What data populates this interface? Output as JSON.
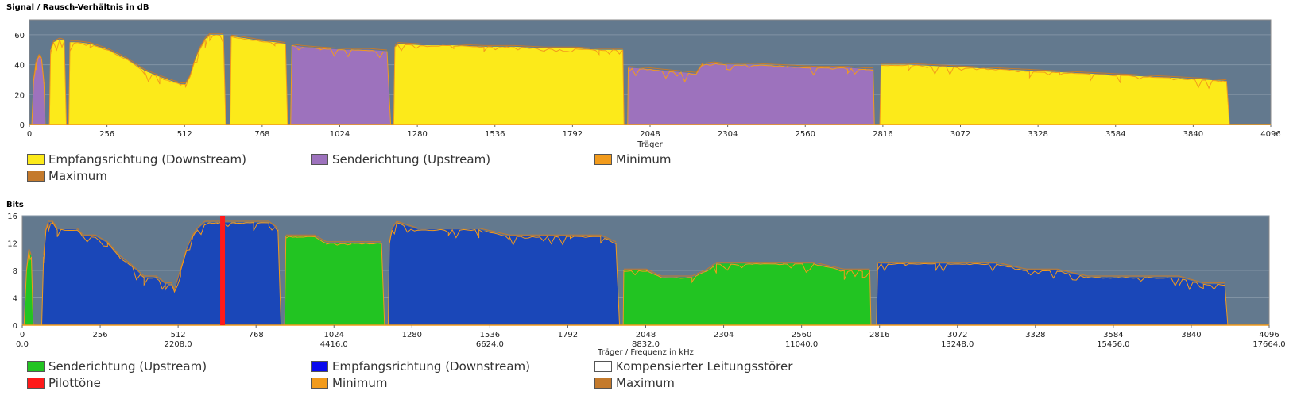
{
  "chart_data": [
    {
      "type": "area",
      "title": "Signal / Rausch-Verhältnis in dB",
      "xlabel": "Träger",
      "xlim": [
        0,
        4096
      ],
      "ylim": [
        0,
        70
      ],
      "y_ticks": [
        0,
        20,
        40,
        60
      ],
      "x_ticks": [
        0,
        256,
        512,
        768,
        1024,
        1280,
        1536,
        1792,
        2048,
        2304,
        2560,
        2816,
        3072,
        3328,
        3584,
        3840,
        4096
      ],
      "grid": true,
      "legend_position": "bottom",
      "colors": {
        "downstream": "#fcea1a",
        "upstream": "#9d72bd",
        "minimum": "#f29b1c",
        "maximum": "#c47a2c",
        "background": "#63798e"
      },
      "legend": [
        {
          "label": "Empfangsrichtung (Downstream)",
          "color": "#fcea1a"
        },
        {
          "label": "Senderichtung (Upstream)",
          "color": "#9d72bd"
        },
        {
          "label": "Minimum",
          "color": "#f29b1c"
        },
        {
          "label": "Maximum",
          "color": "#c47a2c"
        }
      ],
      "series": [
        {
          "name": "Senderichtung (Upstream)",
          "color": "#9d72bd",
          "points": [
            [
              8,
              0
            ],
            [
              14,
              30
            ],
            [
              22,
              42
            ],
            [
              32,
              46
            ],
            [
              40,
              44
            ],
            [
              48,
              28
            ],
            [
              52,
              0
            ]
          ]
        },
        {
          "name": "Empfangsrichtung (Downstream)",
          "color": "#fcea1a",
          "points": [
            [
              66,
              0
            ],
            [
              70,
              50
            ],
            [
              80,
              55
            ],
            [
              100,
              57
            ],
            [
              115,
              56
            ],
            [
              122,
              0
            ]
          ]
        },
        {
          "name": "Empfangsrichtung (Downstream)",
          "color": "#fcea1a",
          "points": [
            [
              130,
              0
            ],
            [
              134,
              55
            ],
            [
              160,
              55
            ],
            [
              200,
              54
            ],
            [
              260,
              50
            ],
            [
              320,
              44
            ],
            [
              380,
              36
            ],
            [
              430,
              32
            ],
            [
              470,
              29
            ],
            [
              500,
              27
            ],
            [
              515,
              27
            ],
            [
              530,
              32
            ],
            [
              545,
              42
            ],
            [
              560,
              50
            ],
            [
              580,
              57
            ],
            [
              595,
              60
            ],
            [
              640,
              60
            ],
            [
              648,
              0
            ]
          ]
        },
        {
          "name": "Empfangsrichtung (Downstream)",
          "color": "#fcea1a",
          "points": [
            [
              662,
              0
            ],
            [
              666,
              59
            ],
            [
              700,
              58
            ],
            [
              760,
              56
            ],
            [
              810,
              55
            ],
            [
              845,
              54
            ],
            [
              852,
              0
            ]
          ]
        },
        {
          "name": "Senderichtung (Upstream)",
          "color": "#9d72bd",
          "points": [
            [
              862,
              0
            ],
            [
              866,
              53
            ],
            [
              900,
              52
            ],
            [
              960,
              51
            ],
            [
              1040,
              50
            ],
            [
              1120,
              50
            ],
            [
              1180,
              49
            ],
            [
              1192,
              0
            ]
          ]
        },
        {
          "name": "Empfangsrichtung (Downstream)",
          "color": "#fcea1a",
          "points": [
            [
              1202,
              0
            ],
            [
              1206,
              52
            ],
            [
              1215,
              54
            ],
            [
              1300,
              53
            ],
            [
              1400,
              53
            ],
            [
              1500,
              52
            ],
            [
              1600,
              52
            ],
            [
              1700,
              51
            ],
            [
              1800,
              51
            ],
            [
              1880,
              50
            ],
            [
              1958,
              50
            ],
            [
              1962,
              0
            ]
          ]
        },
        {
          "name": "Senderichtung (Upstream)",
          "color": "#9d72bd",
          "points": [
            [
              1974,
              0
            ],
            [
              1976,
              38
            ],
            [
              2050,
              37
            ],
            [
              2150,
              35
            ],
            [
              2200,
              34
            ],
            [
              2220,
              40
            ],
            [
              2260,
              41
            ],
            [
              2300,
              40
            ],
            [
              2400,
              40
            ],
            [
              2500,
              39
            ],
            [
              2600,
              38
            ],
            [
              2700,
              38
            ],
            [
              2760,
              37
            ],
            [
              2784,
              37
            ],
            [
              2788,
              0
            ]
          ]
        },
        {
          "name": "Empfangsrichtung (Downstream)",
          "color": "#fcea1a",
          "points": [
            [
              2806,
              0
            ],
            [
              2810,
              40
            ],
            [
              2900,
              40
            ],
            [
              3000,
              39
            ],
            [
              3100,
              38
            ],
            [
              3200,
              37
            ],
            [
              3300,
              36
            ],
            [
              3400,
              35
            ],
            [
              3500,
              34
            ],
            [
              3600,
              33
            ],
            [
              3700,
              32
            ],
            [
              3800,
              31
            ],
            [
              3880,
              30
            ],
            [
              3950,
              29
            ],
            [
              3960,
              0
            ]
          ]
        }
      ]
    },
    {
      "type": "area",
      "title": "Bits",
      "xlabel": "Träger / Frequenz in kHz",
      "xlim": [
        0,
        4096
      ],
      "ylim": [
        0,
        16
      ],
      "y_ticks": [
        0,
        4,
        8,
        12,
        16
      ],
      "x_ticks": [
        0,
        256,
        512,
        768,
        1024,
        1280,
        1536,
        1792,
        2048,
        2304,
        2560,
        2816,
        3072,
        3328,
        3584,
        3840,
        4096
      ],
      "freq_ticks": [
        {
          "at": 0,
          "label": "0.0"
        },
        {
          "at": 512,
          "label": "2208.0"
        },
        {
          "at": 1024,
          "label": "4416.0"
        },
        {
          "at": 1536,
          "label": "6624.0"
        },
        {
          "at": 2048,
          "label": "8832.0"
        },
        {
          "at": 2560,
          "label": "11040.0"
        },
        {
          "at": 3072,
          "label": "13248.0"
        },
        {
          "at": 3584,
          "label": "15456.0"
        },
        {
          "at": 4096,
          "label": "17664.0"
        }
      ],
      "grid": true,
      "legend_position": "bottom",
      "colors": {
        "downstream": "#1a47b8",
        "upstream": "#22c422",
        "pilot": "#ff1a1a",
        "minimum": "#f29b1c",
        "maximum": "#c47a2c",
        "background": "#63798e"
      },
      "legend": [
        {
          "label": "Senderichtung (Upstream)",
          "color": "#22c422"
        },
        {
          "label": "Empfangsrichtung (Downstream)",
          "color": "#0a0aee"
        },
        {
          "label": "Kompensierter Leitungsstörer",
          "color": "#ffffff"
        },
        {
          "label": "Pilottöne",
          "color": "#ff1a1a"
        },
        {
          "label": "Minimum",
          "color": "#f29b1c"
        },
        {
          "label": "Maximum",
          "color": "#c47a2c"
        }
      ],
      "pilot_tone": {
        "x": 658,
        "value": 16
      },
      "series": [
        {
          "name": "Senderichtung (Upstream)",
          "color": "#22c422",
          "points": [
            [
              6,
              0
            ],
            [
              14,
              8
            ],
            [
              22,
              11
            ],
            [
              30,
              10
            ],
            [
              36,
              0
            ]
          ]
        },
        {
          "name": "Empfangsrichtung (Downstream)",
          "color": "#1a47b8",
          "points": [
            [
              64,
              0
            ],
            [
              70,
              10
            ],
            [
              78,
              14
            ],
            [
              86,
              15
            ],
            [
              100,
              15
            ],
            [
              115,
              14
            ],
            [
              140,
              14
            ],
            [
              180,
              14
            ],
            [
              200,
              13
            ],
            [
              240,
              13
            ],
            [
              280,
              12
            ],
            [
              320,
              10
            ],
            [
              350,
              9
            ],
            [
              400,
              7
            ],
            [
              440,
              7
            ],
            [
              470,
              6
            ],
            [
              490,
              6
            ],
            [
              500,
              5
            ],
            [
              520,
              8
            ],
            [
              540,
              11
            ],
            [
              560,
              13
            ],
            [
              575,
              14
            ],
            [
              600,
              15
            ],
            [
              640,
              15
            ],
            [
              700,
              15
            ],
            [
              760,
              15
            ],
            [
              810,
              15
            ],
            [
              840,
              14
            ],
            [
              850,
              0
            ]
          ]
        },
        {
          "name": "Senderichtung (Upstream)",
          "color": "#22c422",
          "points": [
            [
              862,
              0
            ],
            [
              866,
              13
            ],
            [
              900,
              13
            ],
            [
              960,
              13
            ],
            [
              1000,
              12
            ],
            [
              1080,
              12
            ],
            [
              1140,
              12
            ],
            [
              1180,
              12
            ],
            [
              1190,
              0
            ]
          ]
        },
        {
          "name": "Empfangsrichtung (Downstream)",
          "color": "#1a47b8",
          "points": [
            [
              1202,
              0
            ],
            [
              1206,
              12
            ],
            [
              1215,
              14
            ],
            [
              1230,
              15
            ],
            [
              1300,
              14
            ],
            [
              1400,
              14
            ],
            [
              1500,
              14
            ],
            [
              1600,
              13
            ],
            [
              1700,
              13
            ],
            [
              1800,
              13
            ],
            [
              1900,
              13
            ],
            [
              1950,
              12
            ],
            [
              1962,
              0
            ]
          ]
        },
        {
          "name": "Senderichtung (Upstream)",
          "color": "#22c422",
          "points": [
            [
              1974,
              0
            ],
            [
              1976,
              8
            ],
            [
              2050,
              8
            ],
            [
              2100,
              7
            ],
            [
              2200,
              7
            ],
            [
              2250,
              8
            ],
            [
              2280,
              9
            ],
            [
              2400,
              9
            ],
            [
              2500,
              9
            ],
            [
              2600,
              9
            ],
            [
              2700,
              8
            ],
            [
              2760,
              8
            ],
            [
              2784,
              8
            ],
            [
              2788,
              0
            ]
          ]
        },
        {
          "name": "Empfangsrichtung (Downstream)",
          "color": "#1a47b8",
          "points": [
            [
              2806,
              0
            ],
            [
              2810,
              9
            ],
            [
              2900,
              9
            ],
            [
              3000,
              9
            ],
            [
              3100,
              9
            ],
            [
              3200,
              9
            ],
            [
              3300,
              8
            ],
            [
              3400,
              8
            ],
            [
              3500,
              7
            ],
            [
              3600,
              7
            ],
            [
              3700,
              7
            ],
            [
              3800,
              7
            ],
            [
              3880,
              6
            ],
            [
              3950,
              6
            ],
            [
              3960,
              0
            ]
          ]
        }
      ]
    }
  ]
}
